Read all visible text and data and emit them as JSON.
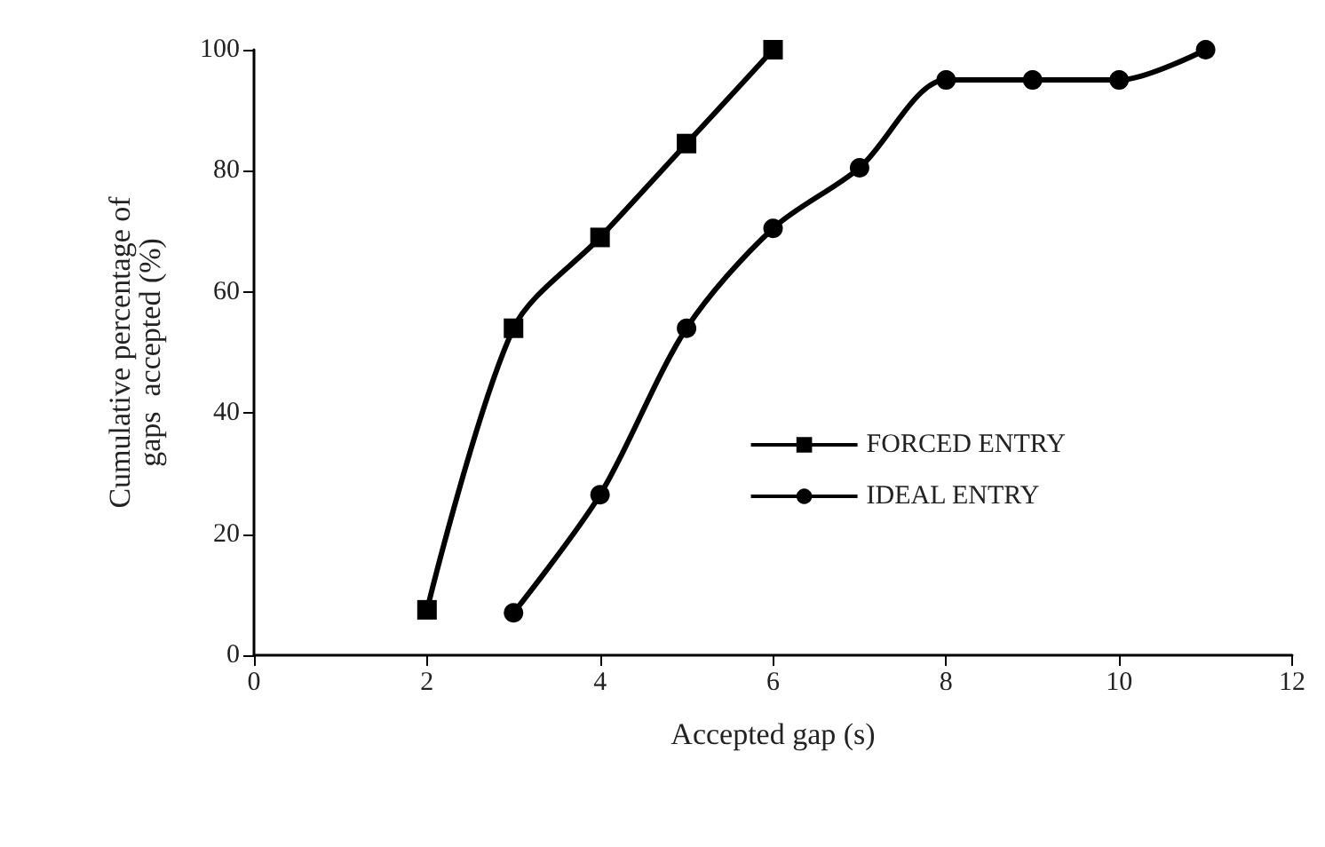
{
  "chart_data": {
    "type": "line",
    "xlabel": "Accepted gap (s)",
    "ylabel": "Cumulative percentage of\ngaps  accepted (%)",
    "xlim": [
      0,
      12
    ],
    "xticks": [
      0,
      2,
      4,
      6,
      8,
      10,
      12
    ],
    "ylim": [
      0,
      100
    ],
    "yticks": [
      0,
      20,
      40,
      60,
      80,
      100
    ],
    "grid": false,
    "legend": "right",
    "series": [
      {
        "name": "FORCED ENTRY",
        "color": "#000000",
        "marker": "square",
        "x": [
          2,
          3,
          4,
          5,
          6
        ],
        "values": [
          7.5,
          54,
          69,
          84.5,
          100
        ]
      },
      {
        "name": "IDEAL ENTRY",
        "color": "#000000",
        "marker": "circle",
        "x": [
          3,
          4,
          5,
          6,
          7,
          8,
          9,
          10,
          11
        ],
        "values": [
          7,
          26.5,
          54,
          70.5,
          80.5,
          95,
          95,
          95,
          100
        ]
      }
    ]
  }
}
